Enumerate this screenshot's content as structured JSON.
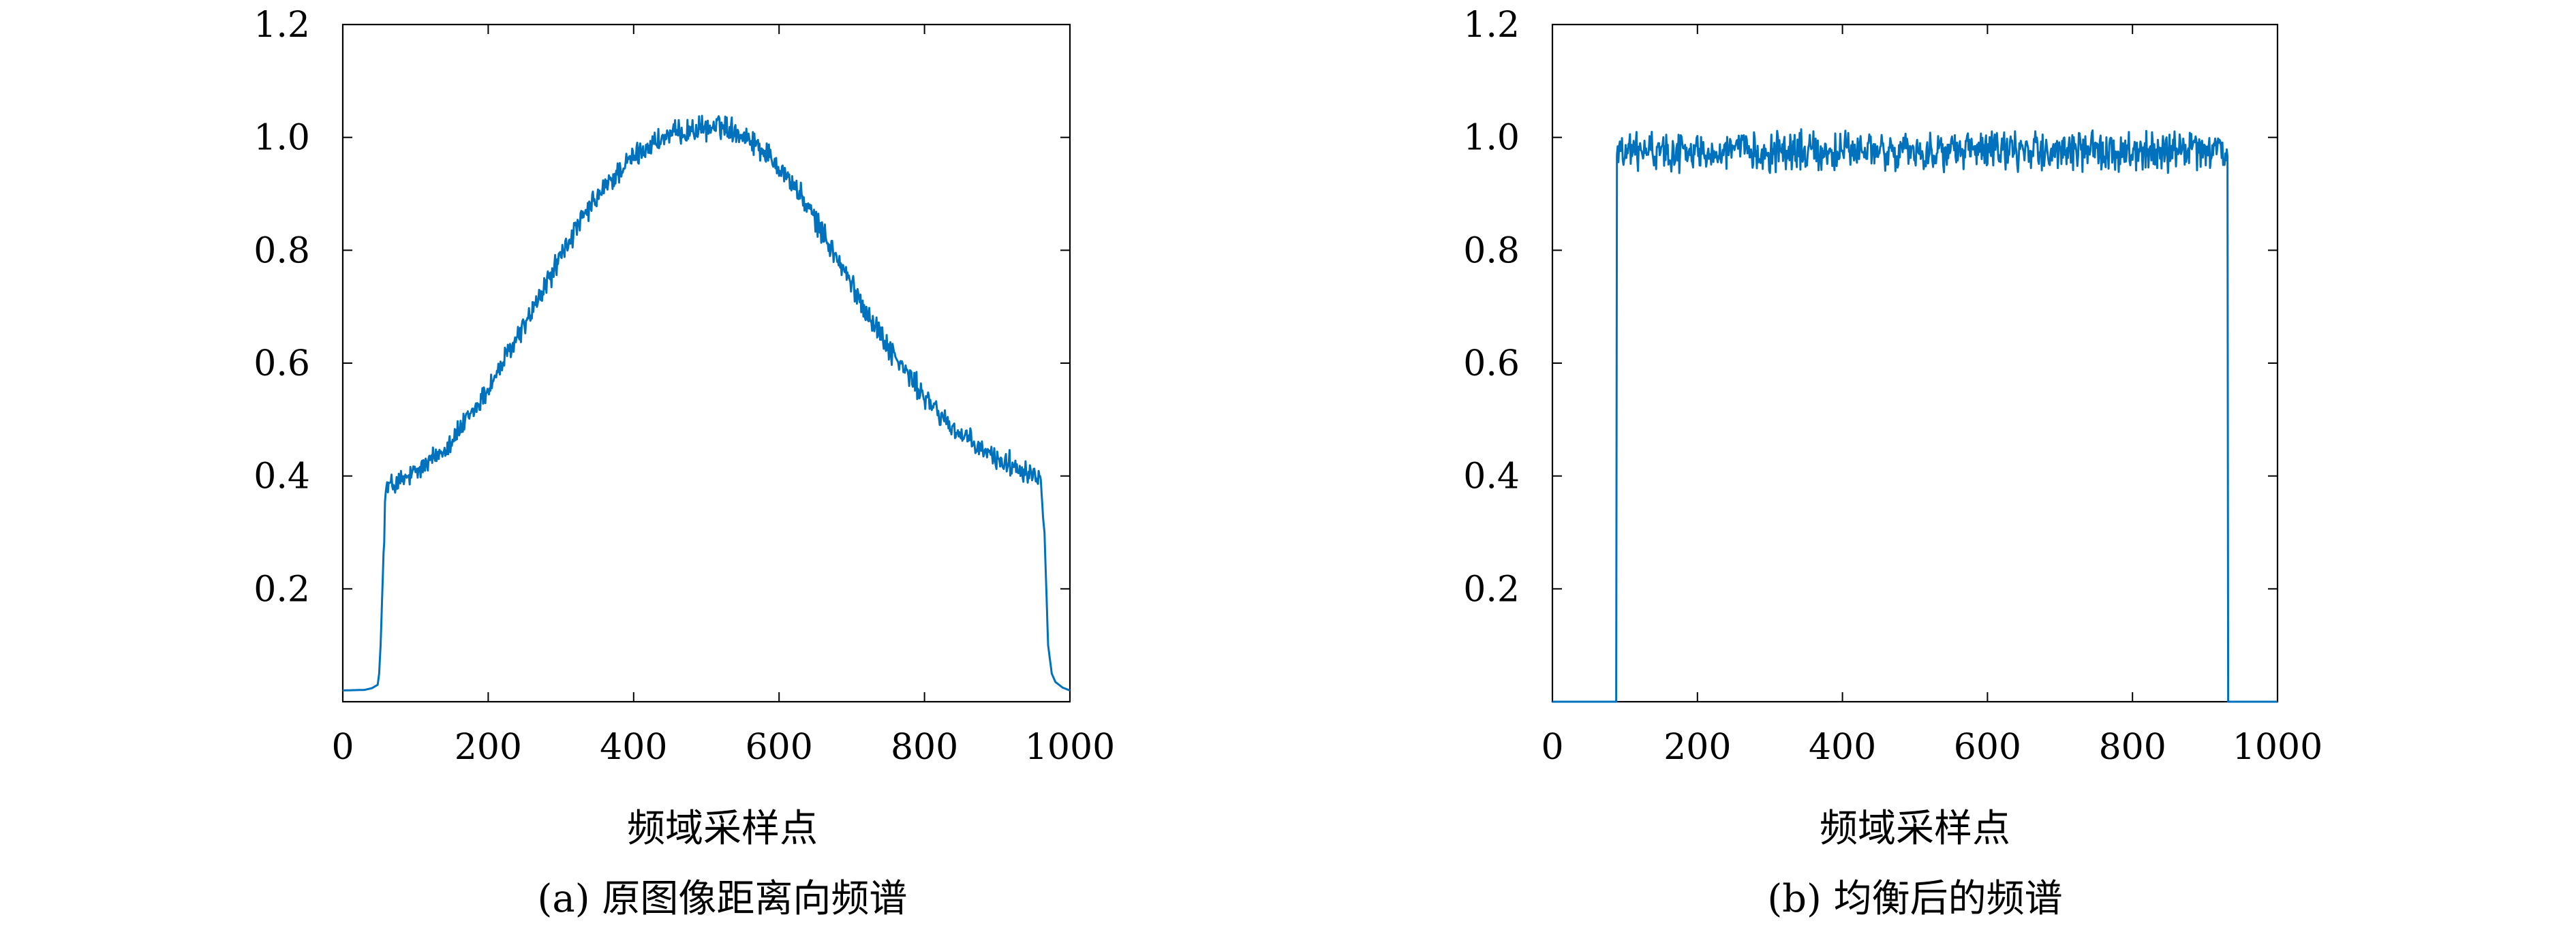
{
  "chart_data": [
    {
      "type": "line",
      "caption": "(a) 原图像距离向频谱",
      "xlabel": "频域采样点",
      "ylabel": "",
      "xlim": [
        0,
        1000
      ],
      "ylim": [
        0,
        1.2
      ],
      "xticks": [
        0,
        200,
        400,
        600,
        800,
        1000
      ],
      "xtick_labels": [
        "0",
        "200",
        "400",
        "600",
        "800",
        "1000"
      ],
      "yticks": [
        0.2,
        0.4,
        0.6,
        0.8,
        1.0,
        1.2
      ],
      "ytick_labels": [
        "0.2",
        "0.4",
        "0.6",
        "0.8",
        "1.0",
        "1.2"
      ],
      "grid": false,
      "color": "#0072BD",
      "noise_amplitude": 0.016,
      "series": [
        {
          "x": [
            0,
            30,
            40,
            48,
            50,
            52,
            55,
            58,
            60,
            80,
            100,
            120,
            140,
            160,
            180,
            200,
            220,
            240,
            260,
            280,
            300,
            320,
            340,
            360,
            380,
            400,
            420,
            440,
            460,
            480,
            500,
            510,
            520,
            530,
            540,
            560,
            580,
            600,
            620,
            640,
            660,
            680,
            700,
            720,
            740,
            760,
            780,
            800,
            820,
            840,
            860,
            880,
            900,
            920,
            940,
            960,
            965,
            970,
            975,
            980,
            990,
            1000
          ],
          "y": [
            0.02,
            0.021,
            0.024,
            0.03,
            0.05,
            0.1,
            0.22,
            0.35,
            0.38,
            0.39,
            0.405,
            0.425,
            0.45,
            0.48,
            0.515,
            0.555,
            0.6,
            0.645,
            0.69,
            0.74,
            0.79,
            0.835,
            0.875,
            0.91,
            0.94,
            0.965,
            0.985,
            0.998,
            1.007,
            1.013,
            1.016,
            1.018,
            1.02,
            1.018,
            1.012,
            0.998,
            0.975,
            0.95,
            0.915,
            0.875,
            0.83,
            0.785,
            0.738,
            0.693,
            0.65,
            0.61,
            0.575,
            0.54,
            0.51,
            0.484,
            0.462,
            0.445,
            0.43,
            0.42,
            0.41,
            0.4,
            0.3,
            0.1,
            0.05,
            0.035,
            0.025,
            0.02
          ]
        }
      ]
    },
    {
      "type": "line",
      "caption": "(b) 均衡后的频谱",
      "xlabel": "频域采样点",
      "ylabel": "",
      "xlim": [
        0,
        1000
      ],
      "ylim": [
        0,
        1.2
      ],
      "xticks": [
        0,
        200,
        400,
        600,
        800,
        1000
      ],
      "xtick_labels": [
        "0",
        "200",
        "400",
        "600",
        "800",
        "1000"
      ],
      "yticks": [
        0.2,
        0.4,
        0.6,
        0.8,
        1.0,
        1.2
      ],
      "ytick_labels": [
        "0.2",
        "0.4",
        "0.6",
        "0.8",
        "1.0",
        "1.2"
      ],
      "grid": false,
      "color": "#0072BD",
      "noise_amplitude": 0.025,
      "series": [
        {
          "x": [
            0,
            88,
            89,
            90,
            200,
            400,
            600,
            800,
            930,
            931,
            932,
            1000
          ],
          "y": [
            0.0,
            0.0,
            0.97,
            0.975,
            0.975,
            0.975,
            0.975,
            0.975,
            0.975,
            0.975,
            0.0,
            0.0
          ]
        }
      ]
    }
  ]
}
